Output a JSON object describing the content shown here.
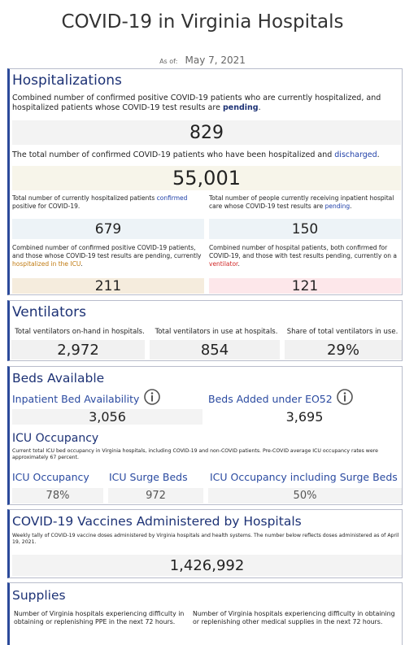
{
  "header": {
    "title": "COVID-19 in Virginia Hospitals",
    "as_of_label": "As of:",
    "as_of_date": "May 7, 2021"
  },
  "hospitalizations": {
    "heading": "Hospitalizations",
    "current": {
      "description": [
        "Combined number of confirmed positive COVID-19 patients who are currently hospitalized, and hospitalized patients whose COVID-19 test results are ",
        "pending",
        "."
      ],
      "value": "829"
    },
    "discharged": {
      "description": [
        "The total number of confirmed COVID-19 patients who have been hospitalized and ",
        "discharged",
        "."
      ],
      "value": "55,001"
    },
    "cells": [
      {
        "description": [
          "Total number of currently hospitalized patients ",
          "confirmed",
          " positive for COVID-19."
        ],
        "value": "679"
      },
      {
        "description": [
          "Total number of people currently receiving inpatient hospital care whose COVID-19 test results are ",
          "pending",
          "."
        ],
        "value": "150"
      },
      {
        "description": [
          "Combined number of confirmed positive COVID-19 patients, and those whose COVID-19 test results are pending, currently ",
          "hospitalized in the ICU",
          "."
        ],
        "value": "211"
      },
      {
        "description": [
          "Combined number of hospital patients, both confirmed for COVID-19, and those with test results pending, currently on a ",
          "ventilator",
          "."
        ],
        "value": "121"
      }
    ]
  },
  "ventilators": {
    "heading": "Ventilators",
    "items": [
      {
        "label": "Total ventilators on-hand in hospitals.",
        "value": "2,972"
      },
      {
        "label": "Total ventilators in use at hospitals.",
        "value": "854"
      },
      {
        "label": "Share of total ventilators in use.",
        "value": "29%"
      }
    ]
  },
  "beds": {
    "heading": "Beds Available",
    "items": [
      {
        "label": "Inpatient Bed Availability",
        "value": "3,056"
      },
      {
        "label": "Beds Added under EO52",
        "value": "3,695"
      }
    ],
    "icu": {
      "heading": "ICU Occupancy",
      "description": "Current total ICU bed occupancy in Virginia hospitals, including COVID-19 and non-COVID patients. Pre-COVID average ICU occupancy rates were approximately 67 percent.",
      "items": [
        {
          "label": "ICU Occupancy",
          "value": "78%"
        },
        {
          "label": "ICU Surge Beds",
          "value": "972"
        },
        {
          "label": "ICU Occupancy including Surge Beds",
          "value": "50%"
        }
      ]
    }
  },
  "vaccines": {
    "heading": "COVID-19 Vaccines Administered by Hospitals",
    "description": "Weekly tally of COVID-19 vaccine doses administered by Virginia hospitals and health systems. The number below reflects doses administered as of April 19, 2021.",
    "value": "1,426,992"
  },
  "supplies": {
    "heading": "Supplies",
    "items": [
      "Number of Virginia hospitals experiencing difficulty in obtaining or replenishing PPE in the next 72 hours.",
      "Number of Virginia hospitals experiencing difficulty in obtaining or replenishing other medical supplies in the next 72 hours."
    ]
  }
}
